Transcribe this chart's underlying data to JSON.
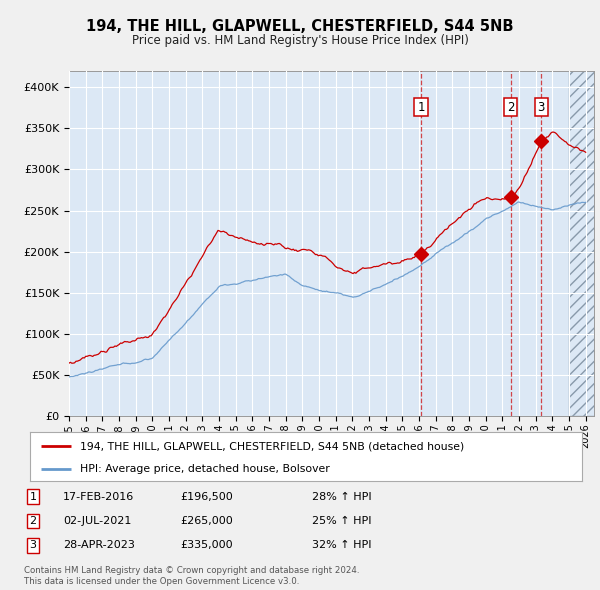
{
  "title": "194, THE HILL, GLAPWELL, CHESTERFIELD, S44 5NB",
  "subtitle": "Price paid vs. HM Land Registry's House Price Index (HPI)",
  "xlim_start": 1995.0,
  "xlim_end": 2026.5,
  "ylim": [
    0,
    420000
  ],
  "yticks": [
    0,
    50000,
    100000,
    150000,
    200000,
    250000,
    300000,
    350000,
    400000
  ],
  "ytick_labels": [
    "£0",
    "£50K",
    "£100K",
    "£150K",
    "£200K",
    "£250K",
    "£300K",
    "£350K",
    "£400K"
  ],
  "red_label": "194, THE HILL, GLAPWELL, CHESTERFIELD, S44 5NB (detached house)",
  "blue_label": "HPI: Average price, detached house, Bolsover",
  "transactions": [
    {
      "num": 1,
      "date": "17-FEB-2016",
      "price": "£196,500",
      "pct": "28% ↑ HPI",
      "year": 2016.12,
      "value": 196500
    },
    {
      "num": 2,
      "date": "02-JUL-2021",
      "price": "£265,000",
      "pct": "25% ↑ HPI",
      "year": 2021.5,
      "value": 265000
    },
    {
      "num": 3,
      "date": "28-APR-2023",
      "price": "£335,000",
      "pct": "32% ↑ HPI",
      "year": 2023.33,
      "value": 335000
    }
  ],
  "footer1": "Contains HM Land Registry data © Crown copyright and database right 2024.",
  "footer2": "This data is licensed under the Open Government Licence v3.0.",
  "bg_color": "#f0f0f0",
  "plot_bg": "#dce8f5",
  "grid_color": "#ffffff",
  "red_color": "#cc0000",
  "blue_color": "#6699cc",
  "hatch_color": "#aabbcc"
}
